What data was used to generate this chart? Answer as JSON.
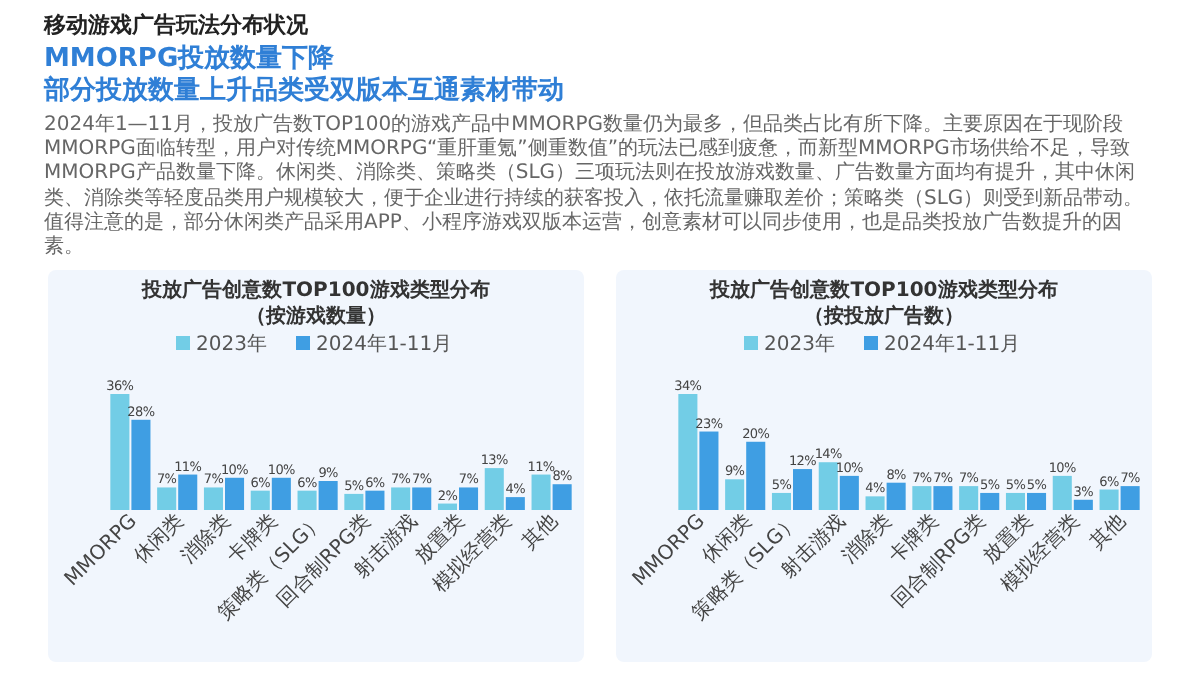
{
  "chart_data": [
    {
      "type": "bar",
      "title": "投放广告创意数TOP100游戏类型分布",
      "subtitle": "（按游戏数量）",
      "categories": [
        "MMORPG",
        "休闲类",
        "消除类",
        "卡牌类",
        "策略类（SLG）",
        "回合制RPG类",
        "射击游戏",
        "放置类",
        "模拟经营类",
        "其他"
      ],
      "series": [
        {
          "name": "2023年",
          "color": "#72cde6",
          "values": [
            36,
            7,
            7,
            6,
            6,
            5,
            7,
            2,
            13,
            11
          ],
          "value_labels": [
            "36%",
            "7%",
            "7%",
            "6%",
            "6%",
            "5%",
            "7%",
            "2%",
            "13%",
            "11%"
          ]
        },
        {
          "name": "2024年1-11月",
          "color": "#3f9ee3",
          "values": [
            28,
            11,
            10,
            10,
            9,
            6,
            7,
            7,
            4,
            8
          ],
          "value_labels": [
            "28%",
            "11%",
            "10%",
            "10%",
            "9%",
            "6%",
            "7%",
            "7%",
            "4%",
            "8%"
          ]
        }
      ],
      "legend": "top",
      "annotations": [
        "移动游戏广告玩法分布状况",
        "MMORPG投放数量下降",
        "部分投放数量上升品类受双版本互通素材带动",
        "2024年1—11月，投放广告数TOP100的游戏产品中MMORPG数量仍为最多，但品类占比有所下降。主要原因在于现阶段MMORPG面临转型，用户对传统MMORPG“重肝重氪”侧重数值”的玩法已感到疲惫，而新型MMORPG市场供给不足，导致MMORPG产品数量下降。休闲类、消除类、策略类（SLG）三项玩法则在投放游戏数量、广告数量方面均有提升，其中休闲类、消除类等轻度品类用户规模较大，便于企业进行持续的获客投入，依托流量赚取差价；策略类（SLG）则受到新品带动。值得注意的是，部分休闲类产品采用APP、小程序游戏双版本运营，创意素材可以同步使用，也是品类投放广告数提升的因素。"
      ]
    },
    {
      "type": "bar",
      "title": "投放广告创意数TOP100游戏类型分布",
      "subtitle": "（按投放广告数）",
      "categories": [
        "MMORPG",
        "休闲类",
        "策略类（SLG）",
        "射击游戏",
        "消除类",
        "卡牌类",
        "回合制RPG类",
        "放置类",
        "模拟经营类",
        "其他"
      ],
      "series": [
        {
          "name": "2023年",
          "color": "#72cde6",
          "values": [
            34,
            9,
            5,
            14,
            4,
            7,
            7,
            5,
            10,
            6
          ],
          "value_labels": [
            "34%",
            "9%",
            "5%",
            "14%",
            "4%",
            "7%",
            "7%",
            "5%",
            "10%",
            "6%"
          ]
        },
        {
          "name": "2024年1-11月",
          "color": "#3f9ee3",
          "values": [
            23,
            20,
            12,
            10,
            8,
            7,
            5,
            5,
            3,
            7
          ],
          "value_labels": [
            "23%",
            "20%",
            "12%",
            "10%",
            "8%",
            "7%",
            "5%",
            "5%",
            "3%",
            "7%"
          ]
        }
      ],
      "legend": "top"
    }
  ]
}
